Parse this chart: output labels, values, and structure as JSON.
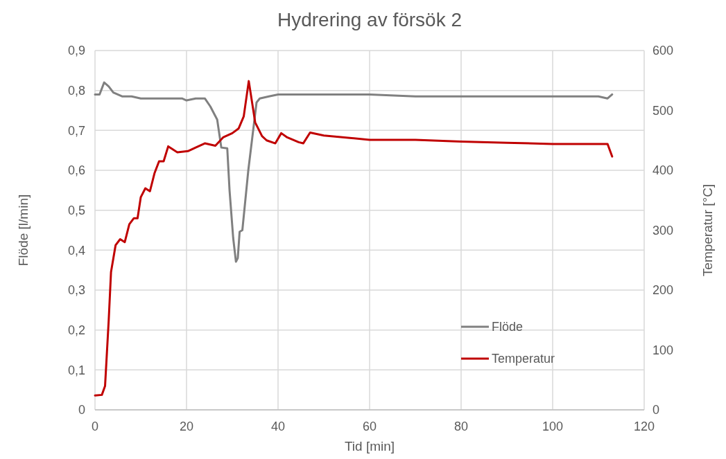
{
  "chart_data": {
    "type": "line",
    "title": "Hydrering av försök 2",
    "xlabel": "Tid [min]",
    "ylabel": "Flöde [l/min]",
    "y2label": "Temperatur [°C]",
    "xlim": [
      0,
      120
    ],
    "xticks": [
      0,
      20,
      40,
      60,
      80,
      100,
      120
    ],
    "ylim": [
      0,
      0.9
    ],
    "yticks": [
      {
        "value": 0,
        "label": "0"
      },
      {
        "value": 0.1,
        "label": "0,1"
      },
      {
        "value": 0.2,
        "label": "0,2"
      },
      {
        "value": 0.3,
        "label": "0,3"
      },
      {
        "value": 0.4,
        "label": "0,4"
      },
      {
        "value": 0.5,
        "label": "0,5"
      },
      {
        "value": 0.6,
        "label": "0,6"
      },
      {
        "value": 0.7,
        "label": "0,7"
      },
      {
        "value": 0.8,
        "label": "0,8"
      },
      {
        "value": 0.9,
        "label": "0,9"
      }
    ],
    "y2lim": [
      0,
      600
    ],
    "y2ticks": [
      0,
      100,
      200,
      300,
      400,
      500,
      600
    ],
    "grid": true,
    "legend": "bottom right",
    "line_style": "solid",
    "series": [
      {
        "name": "Flöde",
        "color": "#808080",
        "x": [
          0,
          1,
          2,
          3,
          4,
          6,
          8,
          10,
          15,
          19,
          20,
          22,
          24,
          25.2,
          26.7,
          27.6,
          28.9,
          29.4,
          30.2,
          30.8,
          31.2,
          31.6,
          32.2,
          33.5,
          35.3,
          36,
          38,
          40,
          50,
          60,
          70,
          80,
          90,
          100,
          110,
          112,
          113
        ],
        "values": [
          0.79,
          0.79,
          0.82,
          0.81,
          0.795,
          0.785,
          0.785,
          0.78,
          0.78,
          0.78,
          0.775,
          0.78,
          0.78,
          0.76,
          0.727,
          0.657,
          0.655,
          0.55,
          0.43,
          0.371,
          0.38,
          0.446,
          0.45,
          0.6,
          0.77,
          0.78,
          0.785,
          0.79,
          0.79,
          0.79,
          0.785,
          0.785,
          0.785,
          0.785,
          0.785,
          0.78,
          0.79
        ]
      },
      {
        "name": "Temperatur",
        "color": "#c00000",
        "axis": "y2",
        "x": [
          0,
          1.5,
          2.2,
          3,
          3.5,
          4.5,
          5.5,
          6.5,
          7.5,
          8.5,
          9.3,
          10,
          11,
          12,
          13,
          14,
          15,
          16,
          17,
          18,
          20.3,
          22,
          24,
          26.3,
          28,
          30,
          31.4,
          32.5,
          33.6,
          35,
          36.5,
          37.5,
          39.4,
          40.7,
          42,
          44.5,
          45.5,
          47,
          50,
          60,
          70,
          80,
          90,
          100,
          110,
          112,
          113
        ],
        "values": [
          24,
          25,
          40,
          150,
          230,
          275,
          285,
          280,
          310,
          320,
          320,
          355,
          370,
          365,
          395,
          415,
          415,
          440,
          435,
          430,
          432,
          438,
          445,
          441,
          455,
          462,
          470,
          490,
          549,
          480,
          457,
          450,
          445,
          462,
          455,
          447,
          445,
          463,
          458,
          451,
          451,
          448,
          446,
          444,
          444,
          444,
          423
        ]
      }
    ]
  }
}
